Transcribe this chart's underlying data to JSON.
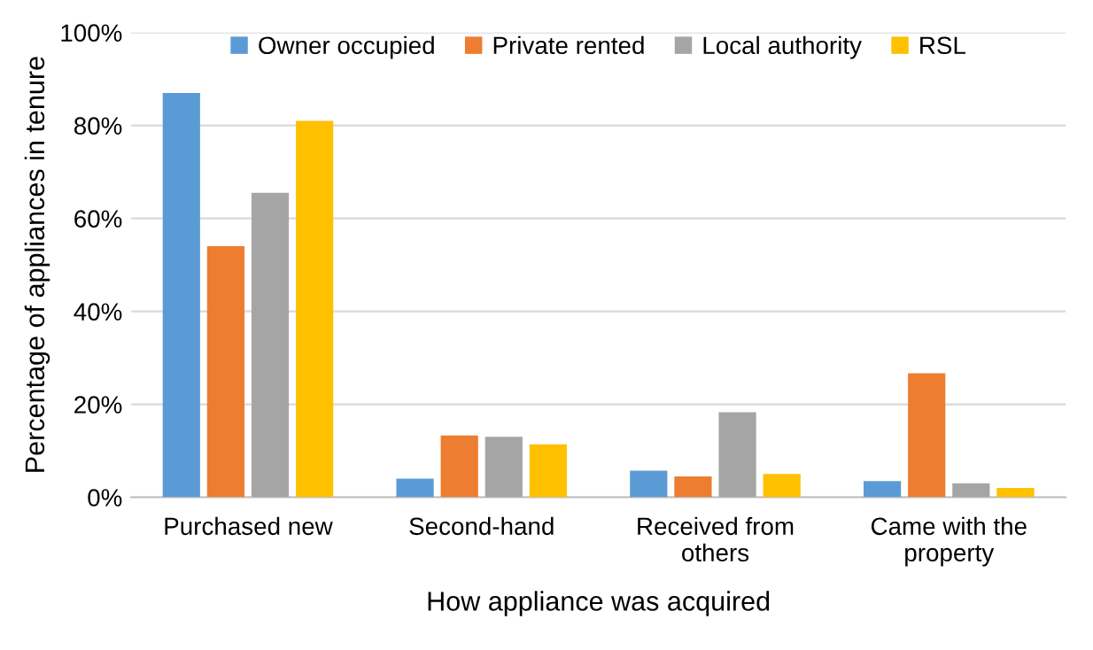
{
  "chart_data": {
    "type": "bar",
    "xlabel": "How appliance was acquired",
    "ylabel": "Percentage of appliances in tenure",
    "categories": [
      "Purchased new",
      "Second-hand",
      "Received from\nothers",
      "Came with the\nproperty"
    ],
    "series": [
      {
        "name": "Owner occupied",
        "color": "#5b9bd5",
        "values": [
          87,
          4,
          5.7,
          3.5
        ]
      },
      {
        "name": "Private rented",
        "color": "#ed7d31",
        "values": [
          54,
          13.3,
          4.5,
          26.7
        ]
      },
      {
        "name": "Local authority",
        "color": "#a5a5a5",
        "values": [
          65.5,
          13,
          18.3,
          3
        ]
      },
      {
        "name": "RSL",
        "color": "#ffc000",
        "values": [
          81,
          11.4,
          5,
          2
        ]
      }
    ],
    "ylim": [
      0,
      100
    ],
    "yticks": [
      {
        "value": 0,
        "label": "0%"
      },
      {
        "value": 20,
        "label": "20%"
      },
      {
        "value": 40,
        "label": "40%"
      },
      {
        "value": 60,
        "label": "60%"
      },
      {
        "value": 80,
        "label": "80%"
      },
      {
        "value": 100,
        "label": "100%"
      }
    ],
    "grid": "y",
    "legend": "top"
  }
}
